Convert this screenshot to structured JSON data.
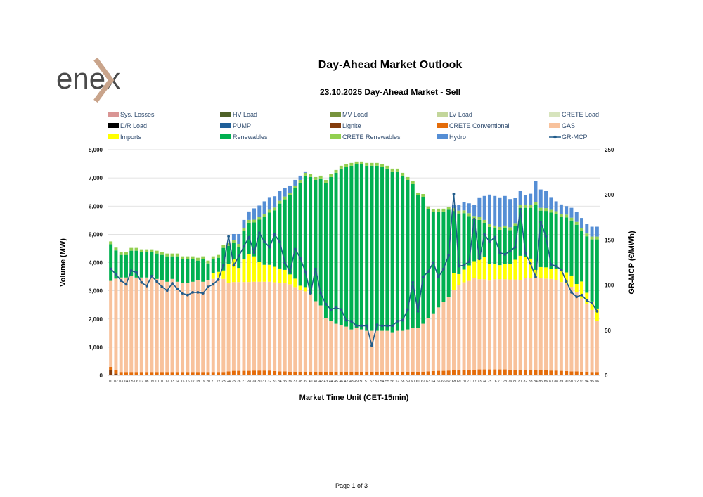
{
  "brand": {
    "logo_text": "enex",
    "accent_color": "#c9a48b"
  },
  "report": {
    "title": "Day-Ahead Market Outlook"
  },
  "footer": {
    "page": "Page 1 of 3"
  },
  "chart_data": {
    "type": "bar",
    "title": "23.10.2025  Day-Ahead Market - Sell",
    "xlabel": "Market Time Unit (CET-15min)",
    "ylabel": "Volume (MW)",
    "y2label": "GR-MCP (€/MWh)",
    "ylim": [
      0,
      8000
    ],
    "y2lim": [
      0,
      250
    ],
    "yticks": [
      "0",
      "1,000",
      "2,000",
      "3,000",
      "4,000",
      "5,000",
      "6,000",
      "7,000",
      "8,000"
    ],
    "y2ticks": [
      "0",
      "50",
      "100",
      "150",
      "200",
      "250"
    ],
    "categories": [
      "01",
      "02",
      "03",
      "04",
      "05",
      "06",
      "07",
      "08",
      "09",
      "10",
      "11",
      "12",
      "13",
      "14",
      "15",
      "16",
      "17",
      "18",
      "19",
      "20",
      "21",
      "22",
      "23",
      "24",
      "25",
      "26",
      "27",
      "28",
      "29",
      "30",
      "31",
      "32",
      "33",
      "34",
      "35",
      "36",
      "37",
      "38",
      "39",
      "40",
      "41",
      "42",
      "43",
      "44",
      "45",
      "46",
      "47",
      "48",
      "49",
      "50",
      "51",
      "52",
      "53",
      "54",
      "55",
      "56",
      "57",
      "58",
      "59",
      "60",
      "61",
      "62",
      "63",
      "64",
      "65",
      "66",
      "67",
      "68",
      "69",
      "70",
      "71",
      "72",
      "73",
      "74",
      "75",
      "76",
      "77",
      "78",
      "79",
      "80",
      "81",
      "82",
      "83",
      "84",
      "85",
      "86",
      "87",
      "88",
      "89",
      "90",
      "91",
      "92",
      "93",
      "94",
      "95",
      "96"
    ],
    "legend": [
      {
        "name": "Sys. Losses",
        "color": "#d99594"
      },
      {
        "name": "HV Load",
        "color": "#4f6228"
      },
      {
        "name": "MV Load",
        "color": "#77933c"
      },
      {
        "name": "LV Load",
        "color": "#c3d69b"
      },
      {
        "name": "CRETE Load",
        "color": "#d7e4bd"
      },
      {
        "name": "D/R Load",
        "color": "#000000"
      },
      {
        "name": "PUMP",
        "color": "#1f5f99"
      },
      {
        "name": "Lignite",
        "color": "#843c0c"
      },
      {
        "name": "CRETE Conventional",
        "color": "#e46c0a"
      },
      {
        "name": "GAS",
        "color": "#f8c29c"
      },
      {
        "name": "Imports",
        "color": "#ffff00"
      },
      {
        "name": "Renewables",
        "color": "#00b050"
      },
      {
        "name": "CRETE Renewables",
        "color": "#92d050"
      },
      {
        "name": "Hydro",
        "color": "#558ed5"
      },
      {
        "name": "GR-MCP",
        "color": "#215c8b"
      }
    ],
    "series": [
      {
        "name": "Lignite",
        "values": [
          180,
          60,
          0,
          0,
          0,
          0,
          0,
          0,
          0,
          0,
          0,
          0,
          0,
          0,
          0,
          0,
          0,
          0,
          0,
          0,
          0,
          0,
          0,
          0,
          0,
          0,
          0,
          0,
          0,
          0,
          0,
          0,
          0,
          0,
          0,
          0,
          0,
          0,
          0,
          0,
          0,
          0,
          0,
          0,
          0,
          0,
          0,
          0,
          0,
          0,
          0,
          0,
          0,
          0,
          0,
          0,
          0,
          0,
          0,
          0,
          0,
          0,
          0,
          0,
          0,
          0,
          0,
          0,
          0,
          0,
          0,
          0,
          0,
          0,
          0,
          0,
          0,
          0,
          0,
          0,
          0,
          0,
          0,
          0,
          0,
          0,
          0,
          0,
          0,
          0,
          0,
          0,
          0,
          0,
          0,
          0
        ]
      },
      {
        "name": "CRETE Conventional",
        "values": [
          120,
          120,
          120,
          120,
          120,
          120,
          120,
          120,
          120,
          120,
          120,
          120,
          120,
          120,
          120,
          120,
          120,
          120,
          120,
          120,
          120,
          120,
          120,
          140,
          160,
          160,
          160,
          160,
          170,
          170,
          170,
          170,
          150,
          140,
          140,
          130,
          130,
          130,
          130,
          130,
          130,
          130,
          130,
          130,
          130,
          130,
          130,
          130,
          130,
          130,
          130,
          130,
          130,
          130,
          130,
          130,
          130,
          130,
          130,
          130,
          130,
          130,
          140,
          150,
          160,
          160,
          170,
          180,
          190,
          200,
          200,
          200,
          210,
          210,
          210,
          210,
          210,
          210,
          200,
          200,
          190,
          190,
          190,
          190,
          190,
          180,
          170,
          170,
          160,
          150,
          140,
          140,
          130,
          130,
          120,
          120
        ]
      },
      {
        "name": "GAS",
        "values": [
          3050,
          3250,
          3350,
          3350,
          3400,
          3350,
          3350,
          3350,
          3400,
          3300,
          3250,
          3200,
          3300,
          3200,
          3150,
          3150,
          3200,
          3250,
          3200,
          3250,
          3300,
          3350,
          3300,
          3150,
          3150,
          3150,
          3150,
          3150,
          3150,
          3150,
          3150,
          3150,
          3150,
          3150,
          3150,
          3100,
          3000,
          2900,
          2850,
          2750,
          2500,
          2350,
          1900,
          1800,
          1700,
          1650,
          1600,
          1500,
          1550,
          1500,
          1450,
          1450,
          1450,
          1450,
          1450,
          1400,
          1450,
          1450,
          1500,
          1550,
          1550,
          1700,
          1900,
          2050,
          2250,
          2450,
          2600,
          2850,
          3000,
          3100,
          3150,
          3250,
          3200,
          3200,
          3150,
          3200,
          3200,
          3200,
          3200,
          3200,
          3200,
          3250,
          3250,
          3300,
          3250,
          3250,
          3250,
          3200,
          3150,
          3100,
          3000,
          2800,
          2600,
          2400,
          2200,
          1800
        ]
      },
      {
        "name": "Imports",
        "values": [
          0,
          0,
          0,
          0,
          0,
          0,
          0,
          0,
          0,
          0,
          0,
          0,
          0,
          0,
          0,
          0,
          0,
          0,
          0,
          0,
          200,
          200,
          300,
          650,
          800,
          500,
          800,
          1000,
          900,
          700,
          600,
          600,
          550,
          500,
          450,
          350,
          300,
          150,
          150,
          0,
          0,
          0,
          0,
          0,
          0,
          0,
          0,
          0,
          0,
          0,
          0,
          0,
          0,
          0,
          0,
          0,
          0,
          0,
          0,
          0,
          0,
          0,
          0,
          0,
          0,
          0,
          0,
          600,
          400,
          450,
          550,
          600,
          700,
          800,
          600,
          550,
          500,
          550,
          550,
          700,
          850,
          750,
          700,
          250,
          400,
          400,
          350,
          400,
          400,
          400,
          400,
          300,
          600,
          400,
          300,
          450
        ]
      },
      {
        "name": "Renewables",
        "values": [
          1300,
          1000,
          800,
          800,
          900,
          950,
          900,
          900,
          850,
          900,
          900,
          900,
          800,
          900,
          850,
          850,
          800,
          700,
          800,
          600,
          500,
          500,
          800,
          650,
          600,
          750,
          1000,
          1100,
          1200,
          1500,
          1700,
          1850,
          2000,
          2300,
          2500,
          2800,
          3200,
          3650,
          3950,
          4150,
          4300,
          4500,
          4800,
          5100,
          5350,
          5550,
          5650,
          5800,
          5800,
          5850,
          5850,
          5850,
          5850,
          5800,
          5750,
          5700,
          5650,
          5500,
          5300,
          5100,
          4700,
          4500,
          3850,
          3600,
          3400,
          3200,
          3100,
          2200,
          2150,
          2000,
          1750,
          1500,
          1400,
          1200,
          1300,
          1250,
          1250,
          1250,
          1200,
          1200,
          1700,
          1750,
          1800,
          2300,
          2000,
          2000,
          2000,
          1950,
          1900,
          1950,
          1950,
          2100,
          1800,
          2000,
          2200,
          2450
        ]
      },
      {
        "name": "CRETE Renewables",
        "values": [
          100,
          100,
          100,
          100,
          100,
          100,
          100,
          100,
          100,
          100,
          100,
          100,
          100,
          100,
          100,
          100,
          100,
          100,
          100,
          100,
          100,
          100,
          100,
          100,
          100,
          100,
          100,
          100,
          100,
          100,
          100,
          100,
          100,
          100,
          100,
          100,
          100,
          100,
          100,
          100,
          100,
          100,
          100,
          100,
          100,
          100,
          100,
          100,
          100,
          100,
          100,
          100,
          100,
          100,
          100,
          100,
          100,
          100,
          100,
          100,
          100,
          100,
          100,
          100,
          100,
          100,
          100,
          100,
          100,
          100,
          100,
          100,
          100,
          100,
          100,
          100,
          100,
          100,
          100,
          100,
          100,
          100,
          100,
          100,
          100,
          100,
          100,
          100,
          100,
          100,
          100,
          100,
          100,
          100,
          100,
          100
        ]
      },
      {
        "name": "Hydro",
        "values": [
          0,
          0,
          0,
          0,
          0,
          0,
          0,
          0,
          0,
          0,
          0,
          0,
          0,
          0,
          0,
          0,
          0,
          0,
          0,
          0,
          0,
          0,
          0,
          0,
          200,
          350,
          300,
          300,
          400,
          400,
          450,
          450,
          400,
          350,
          300,
          250,
          200,
          150,
          50,
          0,
          0,
          0,
          0,
          0,
          0,
          0,
          0,
          0,
          0,
          0,
          0,
          0,
          0,
          0,
          0,
          0,
          0,
          0,
          0,
          0,
          0,
          0,
          0,
          0,
          0,
          0,
          0,
          100,
          200,
          300,
          350,
          400,
          700,
          850,
          1050,
          1050,
          1050,
          1050,
          1000,
          900,
          500,
          350,
          400,
          750,
          650,
          600,
          450,
          350,
          350,
          300,
          350,
          350,
          350,
          350,
          350,
          350
        ]
      },
      {
        "name": "GR-MCP",
        "values": [
          118,
          112,
          105,
          101,
          116,
          114,
          103,
          99,
          110,
          104,
          98,
          94,
          102,
          96,
          91,
          89,
          92,
          92,
          91,
          98,
          101,
          106,
          122,
          154,
          122,
          132,
          143,
          153,
          136,
          158,
          148,
          142,
          156,
          148,
          125,
          115,
          140,
          130,
          115,
          91,
          118,
          91,
          79,
          73,
          75,
          73,
          61,
          60,
          55,
          55,
          55,
          33,
          56,
          55,
          55,
          55,
          60,
          61,
          73,
          103,
          71,
          109,
          115,
          125,
          109,
          118,
          133,
          201,
          121,
          122,
          126,
          173,
          129,
          156,
          148,
          153,
          136,
          134,
          138,
          142,
          184,
          135,
          124,
          109,
          170,
          154,
          123,
          121,
          117,
          104,
          92,
          87,
          89,
          83,
          80,
          71
        ]
      }
    ]
  }
}
